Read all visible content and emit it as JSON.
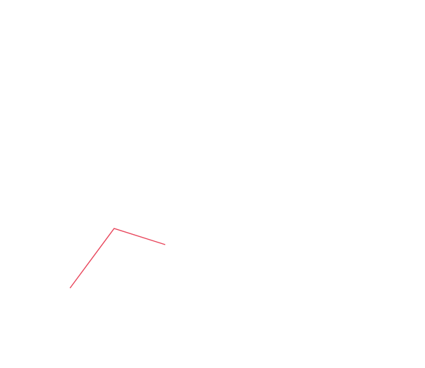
{
  "canvas": {
    "background_color": "#ffffff"
  },
  "stroke": {
    "color": "#e8445a",
    "segment_count": 2
  }
}
